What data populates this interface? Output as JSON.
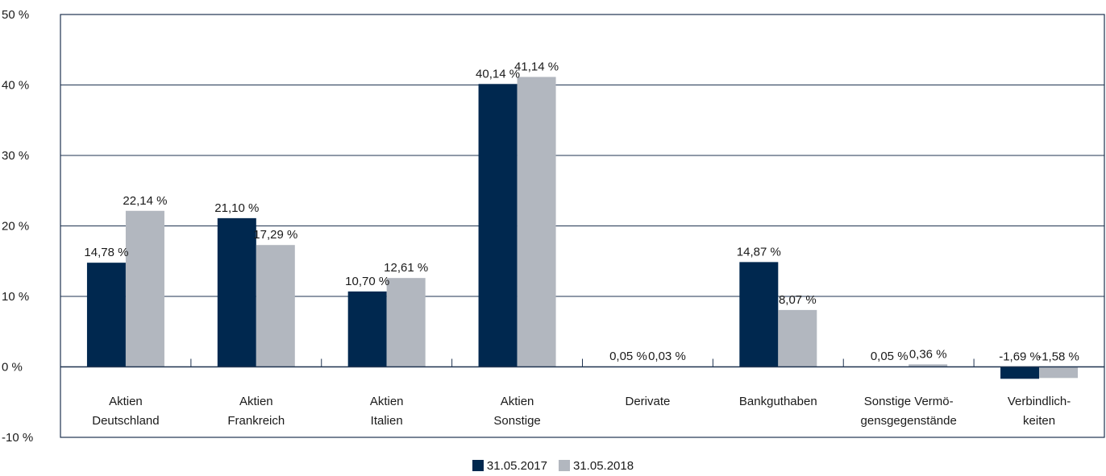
{
  "chart_data": {
    "type": "bar",
    "categories": [
      [
        "Aktien",
        "Deutschland"
      ],
      [
        "Aktien",
        "Frankreich"
      ],
      [
        "Aktien",
        "Italien"
      ],
      [
        "Aktien",
        "Sonstige"
      ],
      [
        "Derivate"
      ],
      [
        "Bankguthaben"
      ],
      [
        "Sonstige Vermö-",
        "gensgegenstände"
      ],
      [
        "Verbindlich-",
        "keiten"
      ]
    ],
    "series": [
      {
        "name": "31.05.2017",
        "color": "#00284f",
        "values": [
          14.78,
          21.1,
          10.7,
          40.14,
          0.05,
          14.87,
          0.05,
          -1.69
        ],
        "labels": [
          "14,78 %",
          "21,10 %",
          "10,70 %",
          "40,14 %",
          "0,05 %",
          "14,87 %",
          "0,05 %",
          "-1,69 %"
        ]
      },
      {
        "name": "31.05.2018",
        "color": "#b2b7bf",
        "values": [
          22.14,
          17.29,
          12.61,
          41.14,
          0.03,
          8.07,
          0.36,
          -1.58
        ],
        "labels": [
          "22,14 %",
          "17,29 %",
          "12,61 %",
          "41,14 %",
          "0,03 %",
          "8,07 %",
          "0,36 %",
          "-1,58 %"
        ]
      }
    ],
    "y_ticks": [
      {
        "value": 50,
        "label": "50 %"
      },
      {
        "value": 40,
        "label": "40 %"
      },
      {
        "value": 30,
        "label": "30 %"
      },
      {
        "value": 20,
        "label": "20 %"
      },
      {
        "value": 10,
        "label": "10 %"
      },
      {
        "value": 0,
        "label": "0 %"
      },
      {
        "value": -10,
        "label": "-10 %"
      }
    ],
    "ylim": [
      -10,
      50
    ],
    "grid": true,
    "legend_position": "bottom-center",
    "title": "",
    "xlabel": "",
    "ylabel": ""
  }
}
